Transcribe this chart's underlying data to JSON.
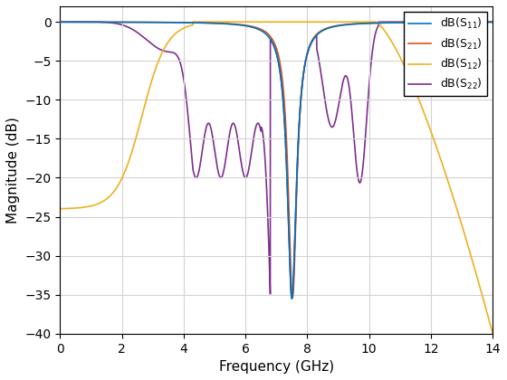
{
  "xlabel": "Frequency (GHz)",
  "ylabel": "Magnitude (dB)",
  "xlim": [
    0,
    14
  ],
  "ylim": [
    -40,
    2
  ],
  "yticks": [
    0,
    -5,
    -10,
    -15,
    -20,
    -25,
    -30,
    -35,
    -40
  ],
  "xticks": [
    0,
    2,
    4,
    6,
    8,
    10,
    12,
    14
  ],
  "colors": {
    "S11": "#0072BD",
    "S21": "#D95319",
    "S12": "#EDB120",
    "S22": "#7E2F8E"
  },
  "figsize": [
    5.6,
    4.2
  ],
  "dpi": 100,
  "grid_color": "#D3D3D3",
  "bg_color": "#FFFFFF"
}
